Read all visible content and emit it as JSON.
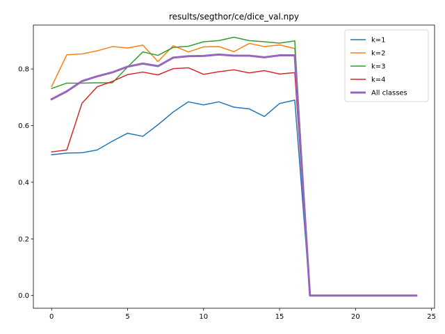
{
  "chart_data": {
    "type": "line",
    "title": "results/segthor/ce/dice_val.npy",
    "xlabel": "",
    "ylabel": "",
    "xlim": [
      -1.2,
      25.2
    ],
    "ylim": [
      -0.045,
      0.955
    ],
    "xticks": [
      0,
      5,
      10,
      15,
      20,
      25
    ],
    "yticks": [
      0.0,
      0.2,
      0.4,
      0.6,
      0.8
    ],
    "grid": false,
    "legend_position": "top-right",
    "x": [
      0,
      1,
      2,
      3,
      4,
      5,
      6,
      7,
      8,
      9,
      10,
      11,
      12,
      13,
      14,
      15,
      16,
      17,
      18,
      19,
      20,
      21,
      22,
      23,
      24
    ],
    "series": [
      {
        "name": "k=1",
        "color": "#1f77b4",
        "width": 1.5,
        "values": [
          0.497,
          0.503,
          0.504,
          0.514,
          0.545,
          0.573,
          0.562,
          0.603,
          0.648,
          0.684,
          0.673,
          0.684,
          0.665,
          0.659,
          0.632,
          0.678,
          0.69,
          0,
          0,
          0,
          0,
          0,
          0,
          0,
          0
        ]
      },
      {
        "name": "k=2",
        "color": "#ff7f0e",
        "width": 1.5,
        "values": [
          0.738,
          0.85,
          0.853,
          0.864,
          0.879,
          0.874,
          0.884,
          0.826,
          0.882,
          0.86,
          0.878,
          0.879,
          0.861,
          0.89,
          0.879,
          0.885,
          0.872,
          0,
          0,
          0,
          0,
          0,
          0,
          0,
          0
        ]
      },
      {
        "name": "k=3",
        "color": "#2ca02c",
        "width": 1.5,
        "values": [
          0.731,
          0.75,
          0.75,
          0.751,
          0.751,
          0.807,
          0.86,
          0.848,
          0.876,
          0.88,
          0.896,
          0.9,
          0.912,
          0.9,
          0.896,
          0.891,
          0.899,
          0,
          0,
          0,
          0,
          0,
          0,
          0,
          0
        ]
      },
      {
        "name": "k=4",
        "color": "#d62728",
        "width": 1.5,
        "values": [
          0.507,
          0.514,
          0.679,
          0.737,
          0.756,
          0.78,
          0.789,
          0.779,
          0.801,
          0.804,
          0.781,
          0.79,
          0.797,
          0.786,
          0.794,
          0.782,
          0.787,
          0,
          0,
          0,
          0,
          0,
          0,
          0,
          0
        ]
      },
      {
        "name": "All classes",
        "color": "#9467bd",
        "width": 3,
        "values": [
          0.693,
          0.721,
          0.757,
          0.774,
          0.788,
          0.808,
          0.819,
          0.81,
          0.84,
          0.845,
          0.846,
          0.851,
          0.847,
          0.847,
          0.841,
          0.848,
          0.848,
          0,
          0,
          0,
          0,
          0,
          0,
          0,
          0
        ]
      }
    ]
  }
}
